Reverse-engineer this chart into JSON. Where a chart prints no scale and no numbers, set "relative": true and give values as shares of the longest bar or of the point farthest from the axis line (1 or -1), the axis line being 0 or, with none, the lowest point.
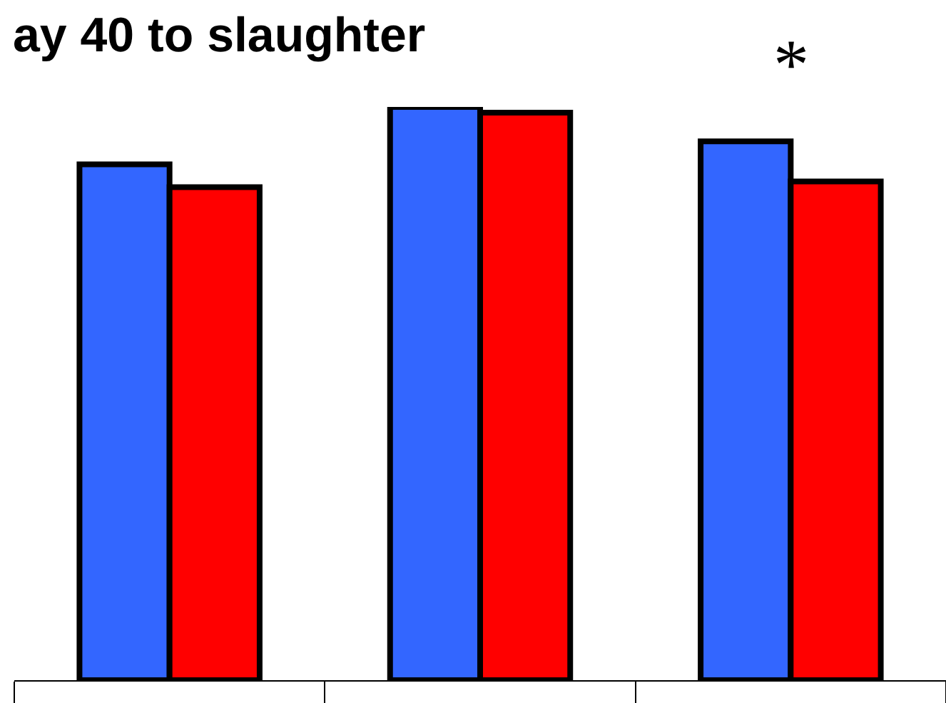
{
  "chart_data": {
    "type": "bar",
    "title": "ay 40 to slaughter",
    "relative": true,
    "categories": [
      null,
      null,
      null
    ],
    "series": [
      {
        "color": "#3366ff",
        "values": [
          0.9,
          1.0,
          0.94
        ]
      },
      {
        "color": "#ff0000",
        "values": [
          0.86,
          0.99,
          0.87
        ]
      }
    ],
    "annotations": [
      "*"
    ],
    "grid": false
  }
}
